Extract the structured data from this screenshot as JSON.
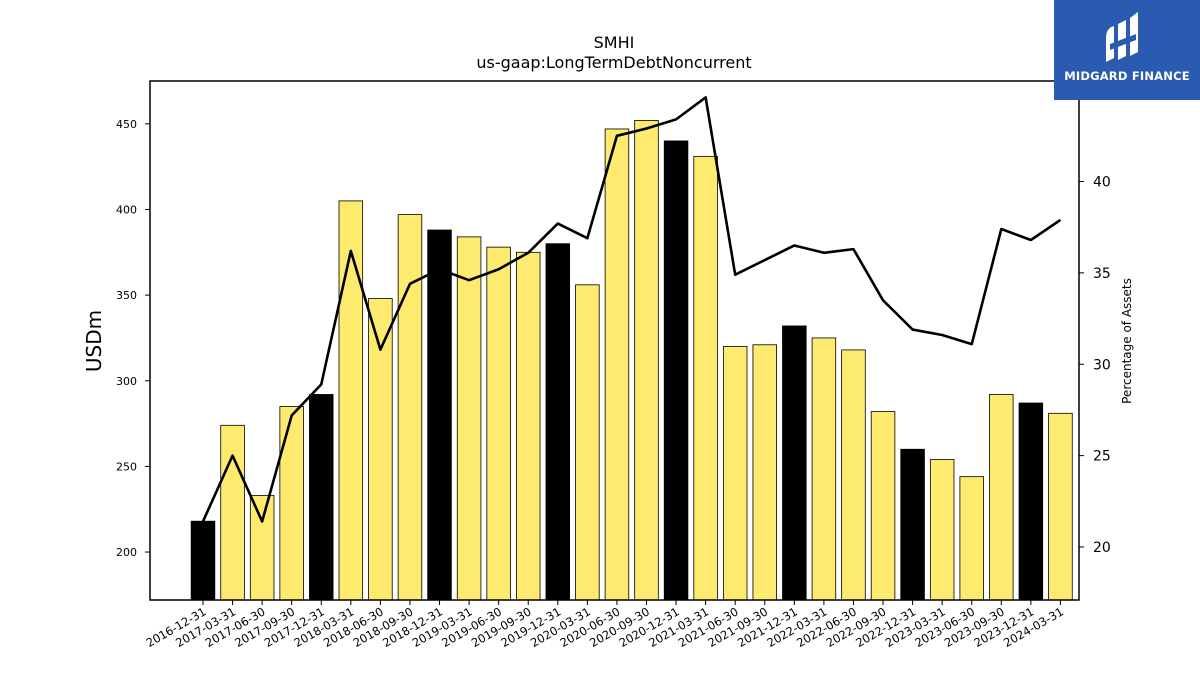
{
  "chart_data": {
    "type": "bar",
    "title": "SMHI",
    "subtitle": "us-gaap:LongTermDebtNoncurrent",
    "ylabel": "USDm",
    "y2label": "Percentage of Assets",
    "ylim": [
      172,
      475
    ],
    "y2lim": [
      17.1,
      45.5
    ],
    "yticks": [
      200,
      250,
      300,
      350,
      400,
      450
    ],
    "y2ticks": [
      20,
      25,
      30,
      35,
      40
    ],
    "categories": [
      "2016-12-31",
      "2017-03-31",
      "2017-06-30",
      "2017-09-30",
      "2017-12-31",
      "2018-03-31",
      "2018-06-30",
      "2018-09-30",
      "2018-12-31",
      "2019-03-31",
      "2019-06-30",
      "2019-09-30",
      "2019-12-31",
      "2020-03-31",
      "2020-06-30",
      "2020-09-30",
      "2020-12-31",
      "2021-03-31",
      "2021-06-30",
      "2021-09-30",
      "2021-12-31",
      "2022-03-31",
      "2022-06-30",
      "2022-09-30",
      "2022-12-31",
      "2023-03-31",
      "2023-06-30",
      "2023-09-30",
      "2023-12-31",
      "2024-03-31"
    ],
    "series": [
      {
        "type": "bar",
        "values": [
          218,
          274,
          233,
          285,
          292,
          405,
          348,
          397,
          388,
          384,
          378,
          375,
          380,
          356,
          447,
          452,
          440,
          431,
          320,
          321,
          332,
          325,
          318,
          282,
          260,
          254,
          244,
          292,
          287,
          281
        ],
        "highlight": [
          true,
          false,
          false,
          false,
          true,
          false,
          false,
          false,
          true,
          false,
          false,
          false,
          true,
          false,
          false,
          false,
          true,
          false,
          false,
          false,
          true,
          false,
          false,
          false,
          true,
          false,
          false,
          false,
          true,
          false
        ]
      },
      {
        "type": "line",
        "axis": "right",
        "values": [
          21.4,
          25.0,
          21.4,
          27.2,
          28.9,
          36.2,
          30.8,
          34.4,
          35.2,
          34.6,
          35.2,
          36.1,
          37.7,
          36.9,
          42.5,
          42.9,
          43.4,
          44.6,
          34.9,
          35.7,
          36.5,
          36.1,
          36.3,
          33.5,
          31.9,
          31.6,
          31.1,
          37.4,
          36.8,
          37.9
        ]
      }
    ],
    "colors": {
      "bar": "#fdea6f",
      "bar_highlight": "#000000",
      "bar_edge": "#000000",
      "line": "#000000"
    }
  },
  "logo": {
    "text": "MIDGARD FINANCE",
    "bg": "#2a5bb0"
  }
}
